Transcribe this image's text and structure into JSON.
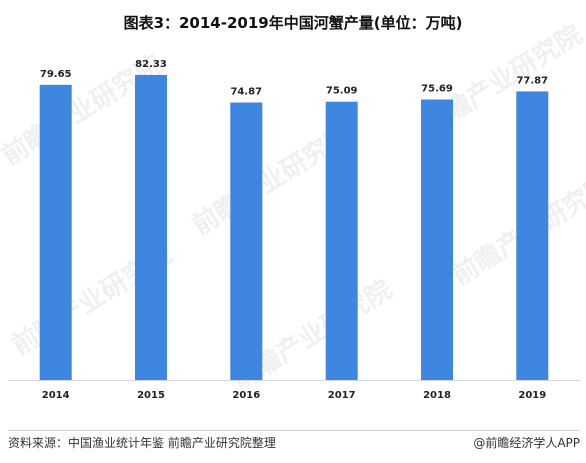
{
  "chart_data": {
    "type": "bar",
    "title": "图表3：2014-2019年中国河蟹产量(单位：万吨)",
    "categories": [
      "2014",
      "2015",
      "2016",
      "2017",
      "2018",
      "2019"
    ],
    "values": [
      79.65,
      82.33,
      74.87,
      75.09,
      75.69,
      77.87
    ],
    "value_labels": [
      "79.65",
      "82.33",
      "74.87",
      "75.09",
      "75.69",
      "77.87"
    ],
    "ylim": [
      0,
      85
    ],
    "grid": false,
    "legend": "none",
    "bar_color": "#3f86e0"
  },
  "footer": {
    "source": "资料来源：中国渔业统计年鉴 前瞻产业研究院整理",
    "brand": "@前瞻经济学人APP"
  },
  "watermark": {
    "text": "前瞻产业研究院"
  }
}
